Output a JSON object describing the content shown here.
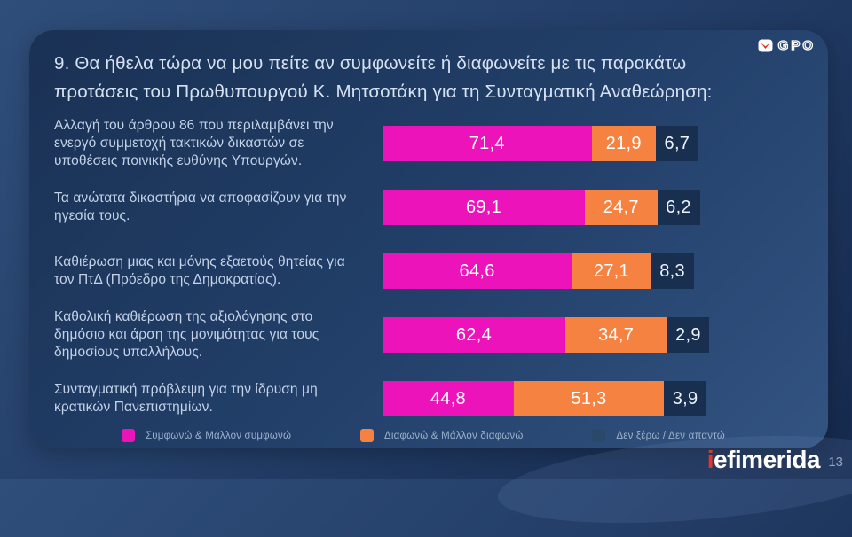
{
  "brand": {
    "gpo_label": "GPO",
    "footer_logo_first_letter": "i",
    "footer_logo_rest": "efimerida",
    "page_number": "13"
  },
  "title": {
    "line1": "9. Θα ήθελα τώρα να μου πείτε αν συμφωνείτε ή διαφωνείτε με τις παρακάτω",
    "line2": "προτάσεις του Πρωθυπουργού Κ. Μητσοτάκη για τη Συνταγματική Αναθεώρηση:"
  },
  "chart_data": {
    "type": "bar",
    "orientation": "horizontal-stacked",
    "value_format": "comma-decimal percent",
    "xlim": [
      0,
      100
    ],
    "grid": false,
    "legend_position": "bottom",
    "categories": [
      "Αλλαγή του άρθρου 86 που περιλαμβάνει την ενεργό συμμετοχή τακτικών δικαστών σε υποθέσεις ποινικής ευθύνης Υπουργών.",
      "Τα ανώτατα δικαστήρια να αποφασίζουν για την ηγεσία τους.",
      "Καθιέρωση μιας και μόνης εξαετούς θητείας για τον ΠτΔ (Πρόεδρο της Δημοκρατίας).",
      "Καθολική καθιέρωση της αξιολόγησης στο δημόσιο και άρση της μονιμότητας για τους δημοσίους υπαλλήλους.",
      "Συνταγματική πρόβλεψη για την ίδρυση μη κρατικών Πανεπιστημίων."
    ],
    "series": [
      {
        "key": "agree",
        "name": "Συμφωνώ & Μάλλον συμφωνώ",
        "color": "#ec13bb",
        "legend_color": "#ec13bb",
        "label_color": "#ffffff",
        "values": [
          71.4,
          69.1,
          64.6,
          62.4,
          44.8
        ]
      },
      {
        "key": "disagree",
        "name": "Διαφωνώ & Μάλλον διαφωνώ",
        "color": "#f58240",
        "legend_color": "#f58240",
        "label_color": "#ffffff",
        "values": [
          21.9,
          24.7,
          27.1,
          34.7,
          51.3
        ]
      },
      {
        "key": "dont-know",
        "name": "Δεν ξέρω / Δεν απαντώ",
        "color": "#182f50",
        "legend_color": "#2a4868",
        "label_color": "#eef3fa",
        "values": [
          6.7,
          6.2,
          8.3,
          2.9,
          3.9
        ]
      }
    ]
  }
}
